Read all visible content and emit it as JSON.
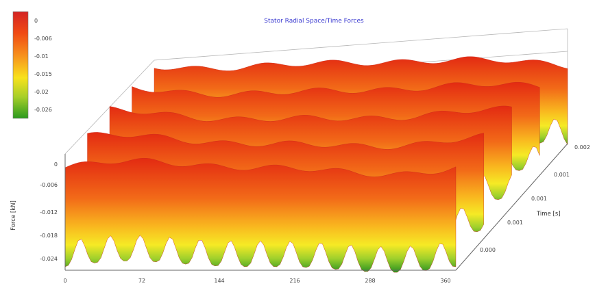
{
  "chart_data": {
    "type": "surface",
    "title": "Stator Radial Space/Time Forces",
    "xlabel": "",
    "ylabel": "Force [kN]",
    "zlabel": "Time [s]",
    "x_ticks": [
      "0",
      "72",
      "144",
      "216",
      "288",
      "360"
    ],
    "x_range": [
      0,
      360
    ],
    "y_ticks": [
      "0",
      "-0.006",
      "-0.012",
      "-0.018",
      "-0.024"
    ],
    "y_range": [
      -0.024,
      0
    ],
    "depth_ticks": [
      "0.000",
      "0.001",
      "0.001",
      "0.001",
      "0.002"
    ],
    "colorbar": {
      "labels": [
        "0",
        "-0.006",
        "-0.01",
        "-0.015",
        "-0.02",
        "-0.026"
      ],
      "colors": [
        "#d42424",
        "#f04a14",
        "#f7941d",
        "#f8e21c",
        "#a6cf2a",
        "#2b9a1e"
      ]
    }
  }
}
